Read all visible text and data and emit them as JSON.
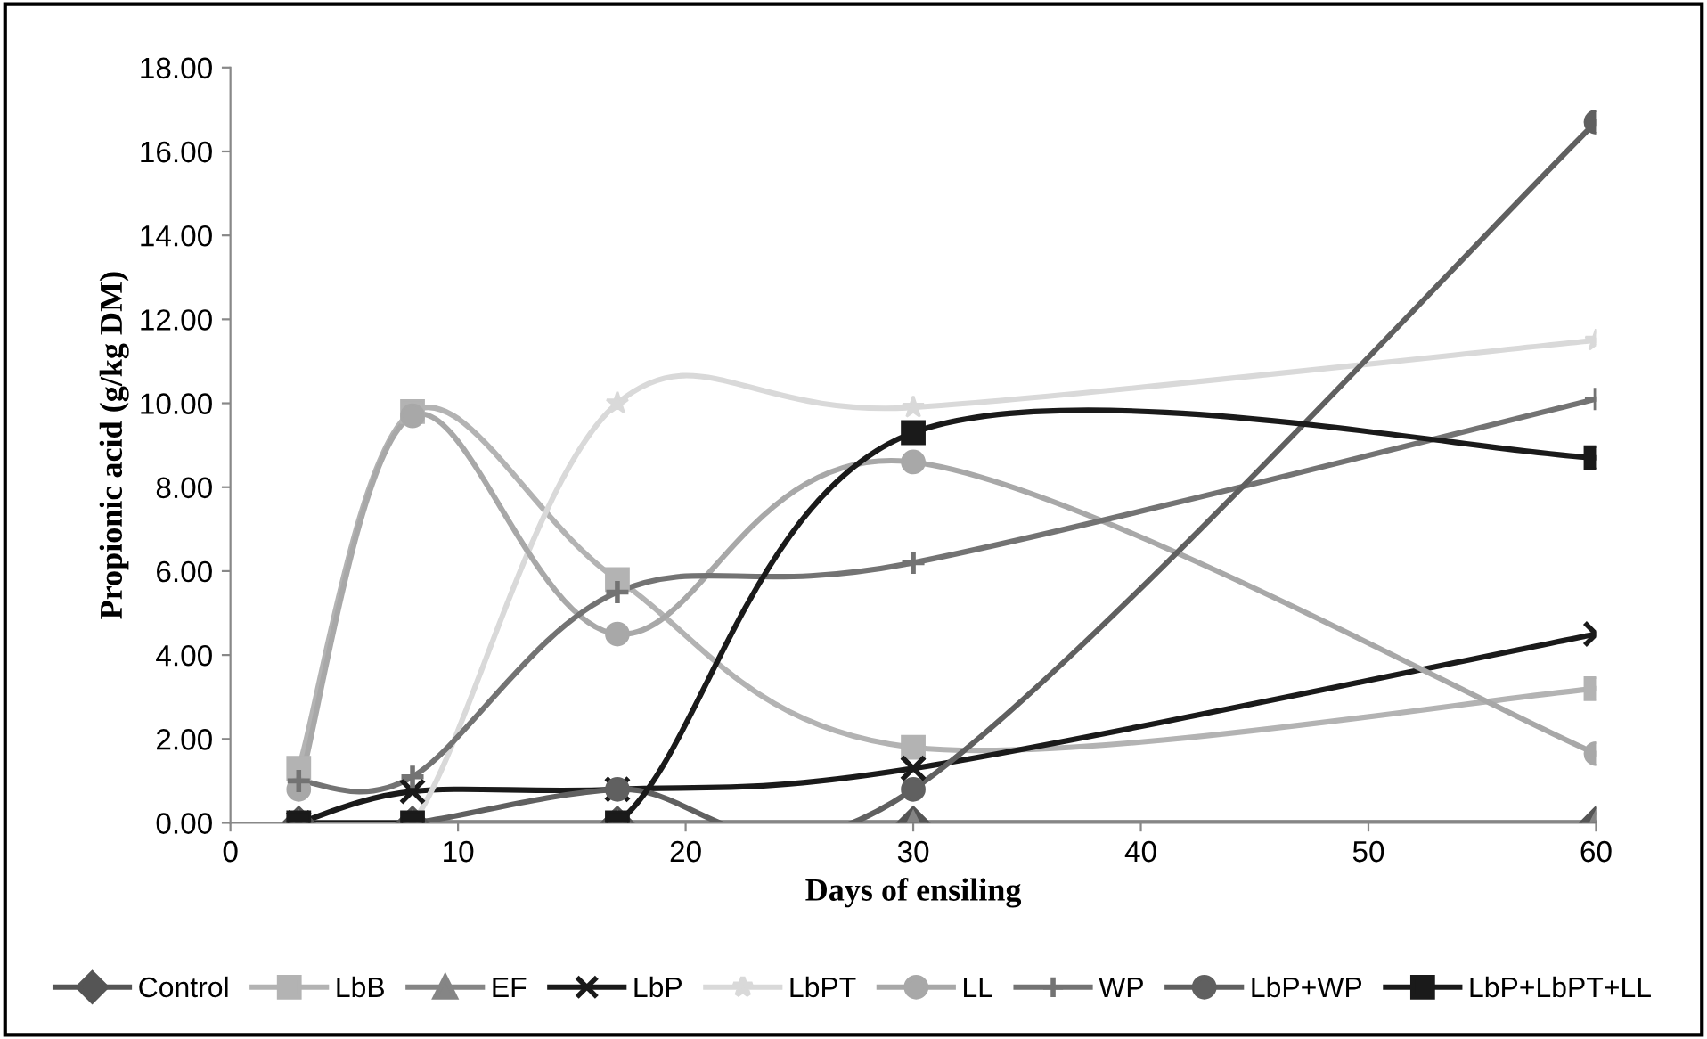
{
  "chart_data": {
    "type": "line",
    "xlabel": "Days of ensiling",
    "ylabel": "Propionic acid (g/kg DM)",
    "x": [
      3,
      8,
      17,
      30,
      60
    ],
    "xlim": [
      0,
      60
    ],
    "xticks": [
      0,
      10,
      20,
      30,
      40,
      50,
      60
    ],
    "ylim": [
      0,
      18
    ],
    "yticks": [
      {
        "value": 0,
        "label": "0.00"
      },
      {
        "value": 2,
        "label": "2.00"
      },
      {
        "value": 4,
        "label": "4.00"
      },
      {
        "value": 6,
        "label": "6.00"
      },
      {
        "value": 8,
        "label": "8.00"
      },
      {
        "value": 10,
        "label": "10.00"
      },
      {
        "value": 12,
        "label": "12.00"
      },
      {
        "value": 14,
        "label": "14.00"
      },
      {
        "value": 16,
        "label": "16.00"
      },
      {
        "value": 18,
        "label": "18.00"
      }
    ],
    "grid": false,
    "legend": "bottom",
    "line_style": "solid",
    "series": [
      {
        "name": "Control",
        "color": "#555555",
        "marker": "diamond",
        "values": [
          0,
          0,
          0,
          0,
          0
        ]
      },
      {
        "name": "LbB",
        "color": "#b3b3b3",
        "marker": "square",
        "values": [
          1.3,
          9.8,
          5.8,
          1.8,
          3.2
        ]
      },
      {
        "name": "EF",
        "color": "#858585",
        "marker": "triangle",
        "values": [
          0,
          0,
          0,
          0,
          0
        ]
      },
      {
        "name": "LbP",
        "color": "#1a1a1a",
        "marker": "cross",
        "values": [
          0,
          0.75,
          0.8,
          1.3,
          4.5
        ]
      },
      {
        "name": "LbPT",
        "color": "#d9d9d9",
        "marker": "star",
        "values": [
          0,
          0,
          10.0,
          9.9,
          11.5
        ]
      },
      {
        "name": "LL",
        "color": "#a8a8a8",
        "marker": "circle",
        "values": [
          0.8,
          9.7,
          4.5,
          8.6,
          1.65
        ]
      },
      {
        "name": "WP",
        "color": "#737373",
        "marker": "plus",
        "values": [
          1.0,
          1.1,
          5.5,
          6.2,
          10.1
        ]
      },
      {
        "name": "LbP+WP",
        "color": "#606060",
        "marker": "circle",
        "values": [
          0,
          0,
          0.8,
          0.8,
          16.7
        ]
      },
      {
        "name": "LbP+LbPT+LL",
        "color": "#1a1a1a",
        "marker": "square",
        "values": [
          0,
          0,
          0,
          9.3,
          8.7
        ]
      }
    ]
  }
}
